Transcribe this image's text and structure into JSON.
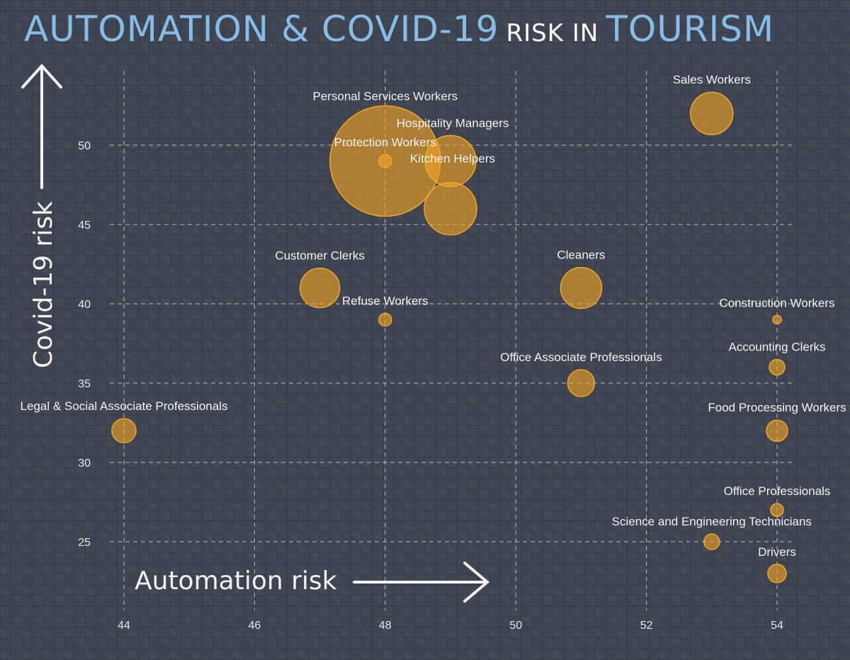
{
  "title": {
    "part1": "AUTOMATION & COVID-19",
    "part2": "RISK IN",
    "part3": "TOURISM"
  },
  "chart_data": {
    "type": "scatter",
    "title": "AUTOMATION & COVID-19 RISK IN TOURISM",
    "xlabel": "Automation risk",
    "ylabel": "Covid-19 risk",
    "xlim": [
      43.2,
      54.3
    ],
    "ylim": [
      21.5,
      54
    ],
    "xticks": [
      44,
      46,
      48,
      50,
      52,
      54
    ],
    "yticks": [
      25,
      30,
      35,
      40,
      45,
      50
    ],
    "grid": true,
    "colors": {
      "bubble": "#f5a623",
      "text": "#f2f2f2",
      "title_accent": "#86bde8"
    },
    "points": [
      {
        "label": "Personal Services Workers",
        "x": 48,
        "y": 49,
        "size": 78
      },
      {
        "label": "Hospitality Managers",
        "x": 49,
        "y": 49,
        "size": 36
      },
      {
        "label": "Protection Workers",
        "x": 48,
        "y": 49,
        "size": 9
      },
      {
        "label": "Kitchen Helpers",
        "x": 49,
        "y": 46,
        "size": 37
      },
      {
        "label": "Sales Workers",
        "x": 53,
        "y": 52,
        "size": 30
      },
      {
        "label": "Customer Clerks",
        "x": 47,
        "y": 41,
        "size": 28
      },
      {
        "label": "Refuse Workers",
        "x": 48,
        "y": 39,
        "size": 9
      },
      {
        "label": "Cleaners",
        "x": 51,
        "y": 41,
        "size": 29
      },
      {
        "label": "Construction Workers",
        "x": 54,
        "y": 39,
        "size": 6
      },
      {
        "label": "Accounting Clerks",
        "x": 54,
        "y": 36,
        "size": 11
      },
      {
        "label": "Office Associate Professionals",
        "x": 51,
        "y": 35,
        "size": 19
      },
      {
        "label": "Legal & Social Associate Professionals",
        "x": 44,
        "y": 32,
        "size": 17
      },
      {
        "label": "Food Processing Workers",
        "x": 54,
        "y": 32,
        "size": 15
      },
      {
        "label": "Office Professionals",
        "x": 54,
        "y": 27,
        "size": 9
      },
      {
        "label": "Science and Engineering Technicians",
        "x": 53,
        "y": 25,
        "size": 11
      },
      {
        "label": "Drivers",
        "x": 54,
        "y": 23,
        "size": 13
      }
    ]
  }
}
